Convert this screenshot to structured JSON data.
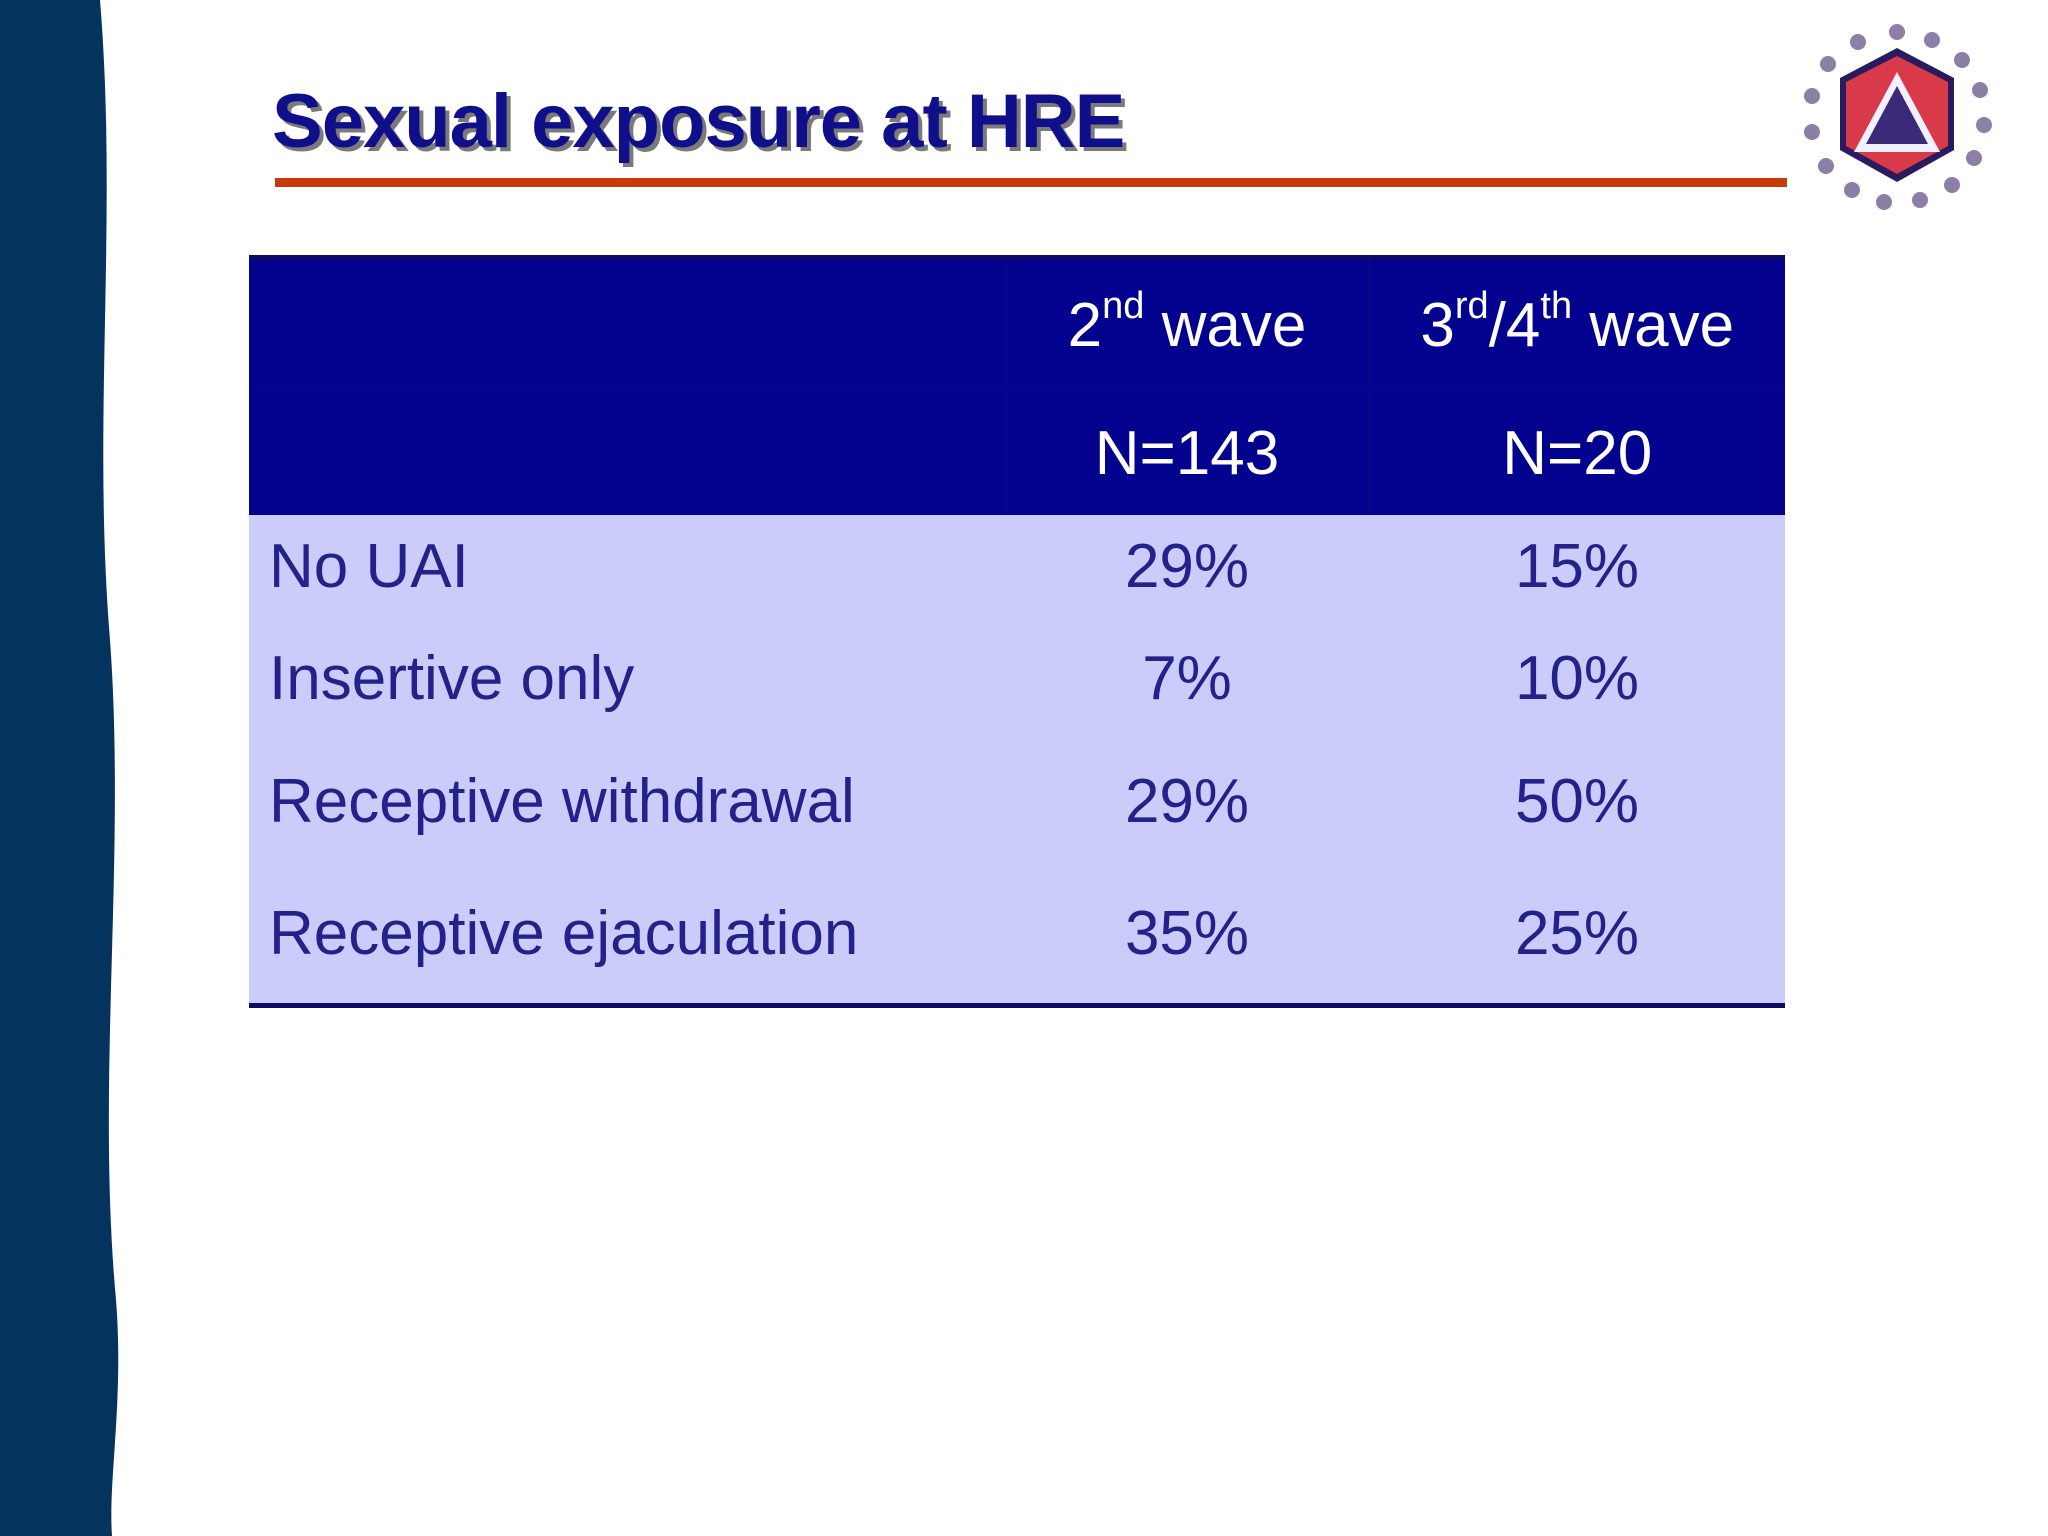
{
  "slide": {
    "title": "Sexual exposure at HRE",
    "colors": {
      "title": "#0f0f8c",
      "rule": "#c9390a",
      "header_bg": "#02028e",
      "body_bg": "#ccccfb",
      "body_text": "#22228a",
      "left_band": "#04345e"
    }
  },
  "logo": {
    "icon": "triangle-hexagon-logo-icon"
  },
  "table": {
    "columns": [
      {
        "base_1": "2",
        "sup_1": "nd",
        "rest": " wave",
        "n": "N=143"
      },
      {
        "base_1": "3",
        "sup_1": "rd",
        "mid": "/4",
        "sup_2": "th",
        "rest": " wave",
        "n": "N=20"
      }
    ],
    "rows": [
      {
        "label": "No UAI",
        "values": [
          "29%",
          "15%"
        ]
      },
      {
        "label": "Insertive only",
        "values": [
          "7%",
          "10%"
        ]
      },
      {
        "label": "Receptive withdrawal",
        "values": [
          "29%",
          "50%"
        ]
      },
      {
        "label": "Receptive ejaculation",
        "values": [
          "35%",
          "25%"
        ]
      }
    ]
  }
}
